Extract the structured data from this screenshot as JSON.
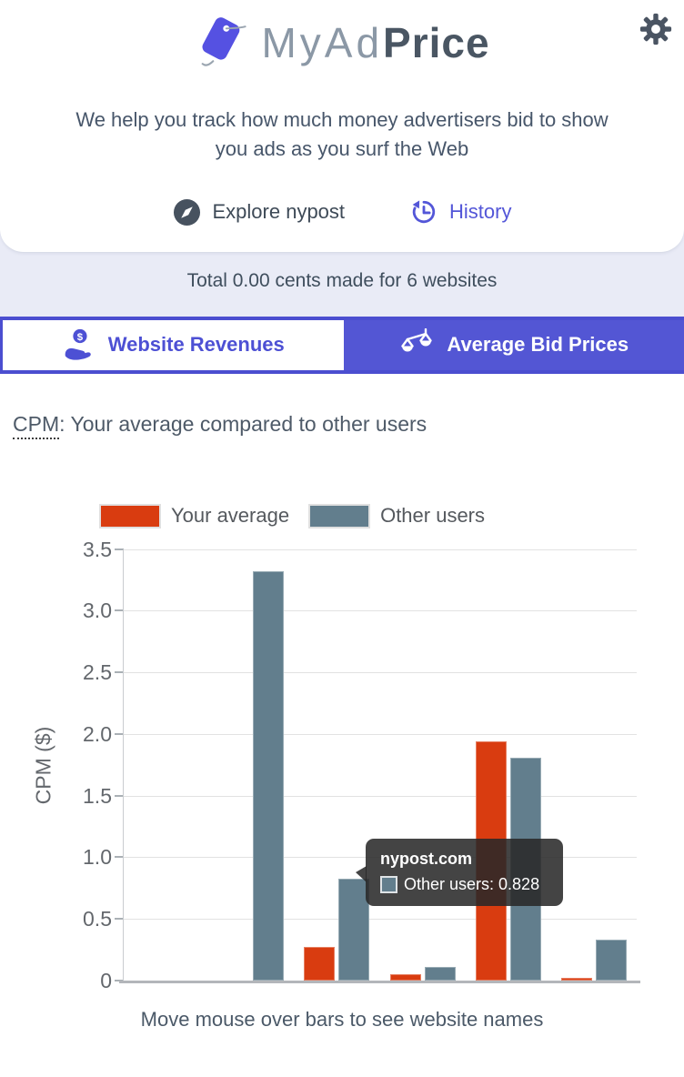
{
  "header": {
    "brand": {
      "name_light": "MyAd",
      "name_bold": "Price"
    },
    "tagline": "We help you track how much money advertisers bid to show you ads as you surf the Web",
    "links": {
      "explore": "Explore nypost",
      "history": "History"
    }
  },
  "status": {
    "text": "Total 0.00 cents made for 6 websites"
  },
  "tabs": [
    {
      "label": "Website Revenues",
      "active": false
    },
    {
      "label": "Average Bid Prices",
      "active": true
    }
  ],
  "section": {
    "title_abbr": "CPM",
    "title_rest": ": Your average compared to other users"
  },
  "chart_data": {
    "type": "bar",
    "title": "",
    "xlabel": "",
    "ylabel": "CPM ($)",
    "ylim": [
      0,
      3.5
    ],
    "yticks": [
      "3.5",
      "3.0",
      "2.5",
      "2.0",
      "1.5",
      "1.0",
      "0.5",
      "0"
    ],
    "grid": true,
    "legend_position": "top",
    "categories": [
      "",
      "nypost.com",
      "",
      "",
      ""
    ],
    "series": [
      {
        "name": "Your average",
        "color": "#d93c10",
        "values": [
          0,
          0.27,
          0.05,
          1.94,
          0.02
        ]
      },
      {
        "name": "Other users",
        "color": "#627e8d",
        "values": [
          3.32,
          0.828,
          0.11,
          1.81,
          0.33
        ]
      }
    ],
    "tooltip": {
      "title": "nypost.com",
      "series": "Other users",
      "value": 0.828,
      "text": "Other users: 0.828"
    }
  },
  "caption": "Move mouse over bars to see website names",
  "colors": {
    "accent_indigo": "#5356d4",
    "tab_border": "#4b4ed0",
    "logo_tag": "#5551e2",
    "red": "#d93c10",
    "slate": "#627e8d",
    "text_dark": "#3f4e5d",
    "bg_lavender": "#e9ebf6",
    "tooltip_bg": "rgba(40,40,40,0.87)"
  }
}
